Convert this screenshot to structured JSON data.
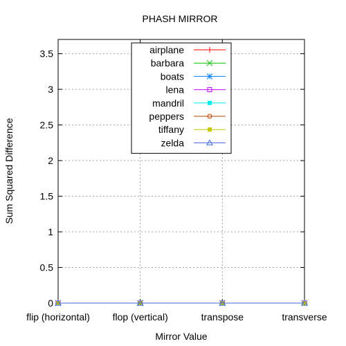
{
  "chart_data": {
    "type": "line",
    "title": "PHASH MIRROR",
    "xlabel": "Mirror Value",
    "ylabel": "Sum Squared Difference",
    "categories": [
      "flip (horizontal)",
      "flop (vertical)",
      "transpose",
      "transverse"
    ],
    "ylim": [
      0,
      3.7
    ],
    "yticks": [
      0,
      0.5,
      1,
      1.5,
      2,
      2.5,
      3,
      3.5
    ],
    "ytick_labels": [
      "0",
      "0.5",
      "1",
      "1.5",
      "2",
      "2.5",
      "3",
      "3.5"
    ],
    "grid": true,
    "legend_position": "top-center",
    "series": [
      {
        "name": "airplane",
        "values": [
          0,
          0,
          0,
          0
        ],
        "color": "#ff0000",
        "marker": "plus"
      },
      {
        "name": "barbara",
        "values": [
          0,
          0,
          0,
          0
        ],
        "color": "#00c000",
        "marker": "cross"
      },
      {
        "name": "boats",
        "values": [
          0,
          0,
          0,
          0
        ],
        "color": "#0080ff",
        "marker": "star"
      },
      {
        "name": "lena",
        "values": [
          0,
          0,
          0,
          0
        ],
        "color": "#c000ff",
        "marker": "square-open"
      },
      {
        "name": "mandril",
        "values": [
          0,
          0,
          0,
          0
        ],
        "color": "#00eeee",
        "marker": "square-filled"
      },
      {
        "name": "peppers",
        "values": [
          0,
          0,
          0,
          0
        ],
        "color": "#c04000",
        "marker": "circle-open"
      },
      {
        "name": "tiffany",
        "values": [
          0,
          0,
          0,
          0
        ],
        "color": "#c8c800",
        "marker": "square-filled"
      },
      {
        "name": "zelda",
        "values": [
          0,
          0,
          0,
          0
        ],
        "color": "#4169e1",
        "marker": "triangle-open"
      }
    ]
  }
}
